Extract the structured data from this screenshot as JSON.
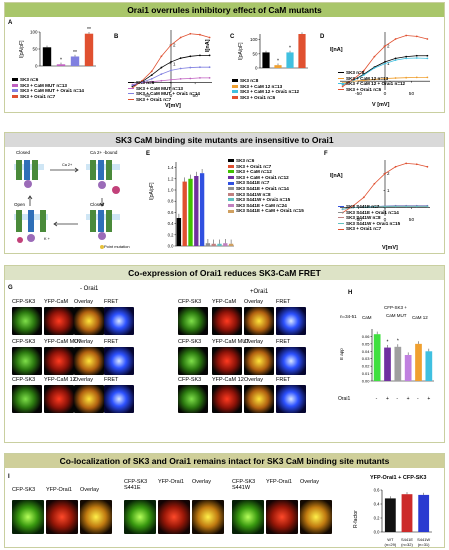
{
  "sections": {
    "s1": "Orai1 overrules inhibitory effect of CaM mutants",
    "s2": "SK3 CaM binding site mutants are insensitive to Orai1",
    "s3": "Co-expression of Orai1 reduces SK3-CaM FRET",
    "s4": "Co-localization of SK3 and Orai1 remains intact for SK3 CaM binding site mutants"
  },
  "panel_letters": [
    "A",
    "B",
    "C",
    "D",
    "E",
    "F",
    "G",
    "H",
    "I"
  ],
  "axis": {
    "ipa_pf": "I[pA/pF]",
    "in_a": "I[nA]",
    "v_mv": "V[mV]",
    "v_mv_spaced": "V [mV]",
    "eapp": "E app",
    "rfactor": "R-factor"
  },
  "chart_data": [
    {
      "type": "bar",
      "panel": "A",
      "categories": [
        "SK3",
        "SK3 + CaM MUT",
        "SK3 + CaM MUT + Orai1",
        "SK3 + Orai1"
      ],
      "values": [
        55,
        5,
        28,
        95
      ],
      "colors": [
        "#000000",
        "#c060c0",
        "#8080e0",
        "#e05030"
      ],
      "ylim": [
        0,
        100
      ],
      "yticks": [
        0,
        50,
        100
      ],
      "legend": [
        "SK3 n=6",
        "SK3 + CaM MUT n=13",
        "SK3 + CaM MUT + Orai1 n=14",
        "SK3 + Orai1 n=7"
      ],
      "annotations": [
        "*",
        "**",
        "**"
      ]
    },
    {
      "type": "line",
      "panel": "B",
      "x": [
        -80,
        -60,
        -40,
        -20,
        0,
        20,
        40,
        60,
        80
      ],
      "series": [
        {
          "name": "SK3 n=6",
          "color": "#000000",
          "values": [
            -0.2,
            0.05,
            0.4,
            0.8,
            1.1,
            1.3,
            1.4,
            1.45,
            1.45
          ]
        },
        {
          "name": "SK3 + CaM MUT n=13",
          "color": "#c060c0",
          "values": [
            -0.1,
            0.0,
            0.05,
            0.1,
            0.15,
            0.2,
            0.22,
            0.25,
            0.25
          ]
        },
        {
          "name": "SK3 + CaM MUT + Orai1 n=14",
          "color": "#8080e0",
          "values": [
            -0.15,
            0.02,
            0.2,
            0.45,
            0.65,
            0.75,
            0.8,
            0.82,
            0.82
          ]
        },
        {
          "name": "SK3 + Orai1 n=7",
          "color": "#e05030",
          "values": [
            -0.3,
            0.1,
            0.6,
            1.4,
            2.0,
            2.4,
            2.6,
            2.55,
            2.4
          ]
        }
      ],
      "xticks": [
        -50,
        0,
        50
      ],
      "yticks": [
        0,
        1,
        2
      ]
    },
    {
      "type": "bar",
      "panel": "C",
      "categories": [
        "SK3",
        "SK3 + CaM 12",
        "SK3 + CaM 12 + Orai1",
        "SK3 + Orai1"
      ],
      "values": [
        55,
        10,
        55,
        120
      ],
      "colors": [
        "#000000",
        "#f0a030",
        "#40c0e0",
        "#e05030"
      ],
      "ylim": [
        0,
        120
      ],
      "yticks": [
        0,
        50,
        100
      ],
      "legend": [
        "SK3 n=8",
        "SK3 + CaM 12 n=13",
        "SK3 + CaM 12 + Orai1 n=12",
        "SK3 + Orai1 n=6"
      ],
      "annotations": [
        "*",
        "*"
      ]
    },
    {
      "type": "line",
      "panel": "D",
      "x": [
        -80,
        -60,
        -40,
        -20,
        0,
        20,
        40,
        60,
        80
      ],
      "series": [
        {
          "name": "SK3 n=8",
          "color": "#000000",
          "values": [
            -0.2,
            0.05,
            0.4,
            0.8,
            1.1,
            1.3,
            1.4,
            1.45,
            1.45
          ]
        },
        {
          "name": "SK3 + CaM 12 n=13",
          "color": "#f0a030",
          "values": [
            -0.1,
            0.0,
            0.05,
            0.1,
            0.15,
            0.18,
            0.2,
            0.22,
            0.22
          ]
        },
        {
          "name": "SK3 + CaM 12 + Orai1 n=12",
          "color": "#40c0e0",
          "values": [
            -0.2,
            0.04,
            0.35,
            0.75,
            1.0,
            1.2,
            1.3,
            1.32,
            1.3
          ]
        },
        {
          "name": "SK3 + Orai1 n=6",
          "color": "#e05030",
          "values": [
            -0.3,
            0.1,
            0.6,
            1.4,
            2.0,
            2.4,
            2.6,
            2.55,
            2.4
          ]
        }
      ],
      "xticks": [
        -50,
        0,
        50
      ],
      "yticks": [
        0,
        1,
        2
      ]
    },
    {
      "type": "bar",
      "panel": "E",
      "categories": [
        "SK3",
        "SK3 + Orai1",
        "SK3 + CaM",
        "SK3 + CaM + Orai1",
        "SK3 S441E",
        "SK3 S441E + Orai1",
        "SK3 S441W",
        "SK3 S441W + Orai1",
        "SK3 S441E + CaM",
        "SK3 S441E + CaM + Orai1"
      ],
      "values": [
        0.5,
        1.15,
        1.2,
        1.25,
        1.3,
        0.05,
        0.04,
        0.04,
        0.05,
        0.04
      ],
      "colors": [
        "#000000",
        "#e05030",
        "#40c000",
        "#7030a0",
        "#3050e0",
        "#909090",
        "#c08080",
        "#60c0c0",
        "#c080c0",
        "#d0a060"
      ],
      "ylim": [
        0,
        1.5
      ],
      "yticks": [
        0,
        0.2,
        0.4,
        0.6,
        0.8,
        1.0,
        1.2,
        1.4
      ],
      "legend": [
        "SK3 n=6",
        "SK3 + Orai1 n=7",
        "SK3 + CaM n=12",
        "SK3 + CaM + Orai1 n=12",
        "SK3 S441E n=7",
        "SK3 S441E + Orai1 n=14",
        "SK3 S441W n=8",
        "SK3 S441W + Orai1 n=15",
        "SK3 S441E + CaM n=24",
        "SK3 S441E + CaM + Orai1 n=15"
      ]
    },
    {
      "type": "line",
      "panel": "F",
      "x": [
        -80,
        -60,
        -40,
        -20,
        0,
        20,
        40,
        60,
        80
      ],
      "series": [
        {
          "name": "SK3 S441E n=7",
          "color": "#3050e0",
          "values": [
            -0.1,
            0.0,
            0.03,
            0.06,
            0.08,
            0.1,
            0.1,
            0.1,
            0.1
          ]
        },
        {
          "name": "SK3 S441E + Orai1 n=14",
          "color": "#909090",
          "values": [
            -0.1,
            0.0,
            0.03,
            0.05,
            0.07,
            0.08,
            0.08,
            0.08,
            0.08
          ]
        },
        {
          "name": "SK3 S441W n=8",
          "color": "#c08080",
          "values": [
            -0.1,
            0.0,
            0.02,
            0.05,
            0.06,
            0.07,
            0.07,
            0.07,
            0.07
          ]
        },
        {
          "name": "SK3 S441W + Orai1 n=15",
          "color": "#60c0c0",
          "values": [
            -0.1,
            0.0,
            0.02,
            0.04,
            0.05,
            0.06,
            0.06,
            0.06,
            0.06
          ]
        },
        {
          "name": "SK3 + Orai1 n=7",
          "color": "#e05030",
          "values": [
            -0.3,
            0.1,
            0.6,
            1.4,
            2.0,
            2.4,
            2.6,
            2.55,
            2.4
          ]
        }
      ],
      "xticks": [
        -50,
        0,
        50
      ],
      "yticks": [
        0,
        1,
        2
      ]
    },
    {
      "type": "bar",
      "panel": "H",
      "categories": [
        "CaM -",
        "CaM +",
        "CaM MUT -",
        "CaM MUT +",
        "CaM 12 -",
        "CaM 12 +"
      ],
      "values": [
        0.063,
        0.045,
        0.046,
        0.035,
        0.05,
        0.04
      ],
      "colors": [
        "#40e040",
        "#7030a0",
        "#a0a0a0",
        "#c080e0",
        "#f0a030",
        "#40c0e0"
      ],
      "ylim": [
        0,
        0.07
      ],
      "yticks": [
        0.0,
        0.01,
        0.02,
        0.03,
        0.04,
        0.05,
        0.06
      ],
      "n_label": "n=34-51",
      "group_labels": [
        "CaM",
        "CaM MUT",
        "CaM 12"
      ],
      "caption": "CFP-SK3 +",
      "orai_label": "Orai1",
      "orai_signs": [
        "-",
        "+",
        "-",
        "+",
        "-",
        "+"
      ],
      "annotations": [
        "*",
        "*"
      ]
    },
    {
      "type": "bar",
      "panel": "I",
      "title": "YFP-Orai1 + CFP-SK3",
      "categories": [
        "WT",
        "S441E",
        "S441W"
      ],
      "n": [
        "(n=29)",
        "(n=32)",
        "(n=31)"
      ],
      "values": [
        0.48,
        0.54,
        0.53
      ],
      "colors": [
        "#111111",
        "#cc2a2a",
        "#2a3ad0"
      ],
      "ylim": [
        0,
        0.6
      ],
      "yticks": [
        0.0,
        0.2,
        0.4,
        0.6
      ]
    }
  ],
  "panel_g": {
    "group_minus": "- Orai1",
    "group_plus": "+Orai1",
    "rows": [
      [
        "CFP-SK3",
        "YFP-CaM",
        "Overlay",
        "FRET"
      ],
      [
        "CFP-SK3",
        "YFP-CaM MUT",
        "Overlay",
        "FRET"
      ],
      [
        "CFP-SK3",
        "YFP-CaM 12",
        "Overlay",
        "FRET"
      ]
    ]
  },
  "panel_i": {
    "groups": [
      [
        "CFP-SK3",
        "YFP-Orai1",
        "Overlay"
      ],
      [
        "CFP-SK3 S441E",
        "YFP-Orai1",
        "Overlay"
      ],
      [
        "CFP-SK3 S441W",
        "YFP-Orai1",
        "Overlay"
      ]
    ]
  },
  "schematic": {
    "labels": [
      "Closed",
      "Ca 2+ -bound",
      "Open",
      "Closed"
    ],
    "legend": "Point mutation",
    "ions": [
      "Ca 2+",
      "K +"
    ]
  }
}
